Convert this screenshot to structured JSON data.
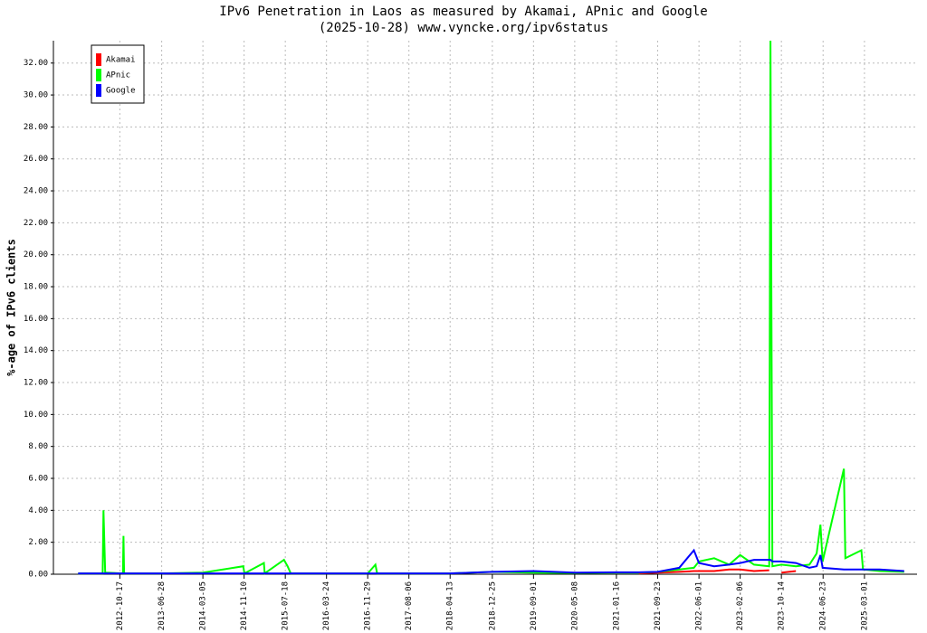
{
  "chart_data": {
    "type": "line",
    "title": "IPv6 Penetration in Laos as measured by Akamai, APnic and Google",
    "subtitle": "(2025-10-28) www.vyncke.org/ipv6status",
    "ylabel": "%-age of IPv6 clients",
    "x": [
      "2012-02-07",
      "2012-07-05",
      "2012-07-10",
      "2012-07-20",
      "2012-11-05",
      "2012-11-08",
      "2012-11-12",
      "2013-06-28",
      "2014-03-05",
      "2014-11-05",
      "2014-11-12",
      "2015-03-10",
      "2015-03-15",
      "2015-07-10",
      "2015-08-01",
      "2015-08-20",
      "2016-03-24",
      "2016-11-29",
      "2017-01-15",
      "2017-01-25",
      "2017-08-06",
      "2018-04-13",
      "2018-12-25",
      "2019-09-01",
      "2020-05-08",
      "2021-01-16",
      "2021-06-01",
      "2021-09-23",
      "2022-02-01",
      "2022-05-01",
      "2022-06-01",
      "2022-09-01",
      "2022-12-01",
      "2023-02-06",
      "2023-05-01",
      "2023-08-01",
      "2023-08-09",
      "2023-08-20",
      "2023-10-14",
      "2024-01-10",
      "2024-04-01",
      "2024-05-15",
      "2024-06-07",
      "2024-06-20",
      "2024-10-27",
      "2024-11-05",
      "2025-02-10",
      "2025-02-20",
      "2025-06-01",
      "2025-10-28"
    ],
    "series": [
      {
        "name": "Akamai",
        "color": "#ff0000",
        "values": [
          null,
          null,
          null,
          null,
          null,
          null,
          null,
          null,
          null,
          null,
          null,
          null,
          null,
          null,
          null,
          null,
          null,
          null,
          null,
          null,
          null,
          null,
          null,
          null,
          null,
          null,
          0.05,
          0.1,
          0.15,
          0.2,
          0.2,
          0.2,
          0.3,
          0.3,
          0.2,
          0.25,
          null,
          null,
          0.1,
          0.2,
          null,
          null,
          null,
          null,
          null,
          null,
          null,
          null,
          null,
          null
        ]
      },
      {
        "name": "APnic",
        "color": "#00ff00",
        "values": [
          0.05,
          0.05,
          4.0,
          0.1,
          0.05,
          2.4,
          0.05,
          0.05,
          0.1,
          0.5,
          0.05,
          0.7,
          0.05,
          0.9,
          0.5,
          0.05,
          0.05,
          0.05,
          0.6,
          0.05,
          0.05,
          0.05,
          0.15,
          0.1,
          0.08,
          0.1,
          0.1,
          0.15,
          0.3,
          0.4,
          0.8,
          1.0,
          0.6,
          1.2,
          0.6,
          0.5,
          33.4,
          0.5,
          0.6,
          0.5,
          0.6,
          1.3,
          3.1,
          0.8,
          6.6,
          1.0,
          1.5,
          0.3,
          0.2,
          0.15
        ]
      },
      {
        "name": "Google",
        "color": "#0000ff",
        "values": [
          0.05,
          0.05,
          0.05,
          0.05,
          0.05,
          0.05,
          0.05,
          0.05,
          0.05,
          0.05,
          0.05,
          0.05,
          0.05,
          0.05,
          0.05,
          0.05,
          0.05,
          0.05,
          0.05,
          0.05,
          0.05,
          0.05,
          0.15,
          0.2,
          0.1,
          0.12,
          0.12,
          0.15,
          0.4,
          1.5,
          0.7,
          0.5,
          0.6,
          0.7,
          0.9,
          0.9,
          0.9,
          0.8,
          0.8,
          0.7,
          0.4,
          0.5,
          1.2,
          0.4,
          0.3,
          0.3,
          0.3,
          0.3,
          0.3,
          0.2
        ]
      }
    ],
    "xlim": [
      "2011-09-10",
      "2026-01-14"
    ],
    "xticks": [
      "2012-10-17",
      "2013-06-28",
      "2014-03-05",
      "2014-11-10",
      "2015-07-18",
      "2016-03-24",
      "2016-11-29",
      "2017-08-06",
      "2018-04-13",
      "2018-12-25",
      "2019-09-01",
      "2020-05-08",
      "2021-01-16",
      "2021-09-23",
      "2022-06-01",
      "2023-02-06",
      "2023-10-14",
      "2024-06-23",
      "2025-03-01"
    ],
    "ylim": [
      0,
      33.4
    ],
    "yticks": [
      {
        "value": 0,
        "label": "0.00"
      },
      {
        "value": 2,
        "label": "2.00"
      },
      {
        "value": 4,
        "label": "4.00"
      },
      {
        "value": 6,
        "label": "6.00"
      },
      {
        "value": 8,
        "label": "8.00"
      },
      {
        "value": 10,
        "label": "10.00"
      },
      {
        "value": 12,
        "label": "12.00"
      },
      {
        "value": 14,
        "label": "14.00"
      },
      {
        "value": 16,
        "label": "16.00"
      },
      {
        "value": 18,
        "label": "18.00"
      },
      {
        "value": 20,
        "label": "20.00"
      },
      {
        "value": 22,
        "label": "22.00"
      },
      {
        "value": 24,
        "label": "24.00"
      },
      {
        "value": 26,
        "label": "26.00"
      },
      {
        "value": 28,
        "label": "28.00"
      },
      {
        "value": 30,
        "label": "30.00"
      },
      {
        "value": 32,
        "label": "32.00"
      }
    ],
    "grid": true,
    "legend": "top-left"
  }
}
